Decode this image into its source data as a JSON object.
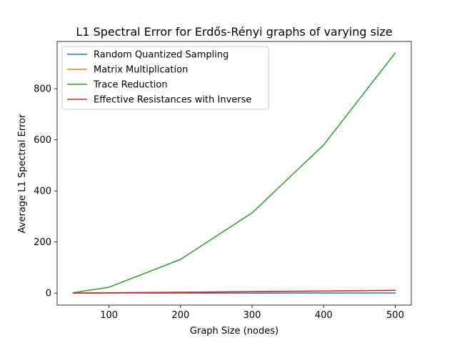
{
  "chart_data": {
    "type": "line",
    "title": "L1 Spectral Error for Erdős-Rényi graphs of varying size",
    "xlabel": "Graph Size (nodes)",
    "ylabel": "Average L1 Spectral Error",
    "x": [
      50,
      100,
      200,
      300,
      400,
      500
    ],
    "xlim": [
      27.5,
      522.5
    ],
    "ylim": [
      -47,
      985
    ],
    "xticks": [
      100,
      200,
      300,
      400,
      500
    ],
    "yticks": [
      0,
      200,
      400,
      600,
      800
    ],
    "grid": false,
    "legend_position": "top-left",
    "series": [
      {
        "name": "Random Quantized Sampling",
        "color": "#1f77b4",
        "values": [
          0.1,
          0.2,
          0.3,
          0.3,
          0.4,
          0.4
        ]
      },
      {
        "name": "Matrix Multiplication",
        "color": "#ff7f0e",
        "values": [
          0.2,
          1.0,
          3.0,
          5.5,
          8.0,
          10.5
        ]
      },
      {
        "name": "Trace Reduction",
        "color": "#2ca02c",
        "values": [
          1.5,
          23,
          132,
          314,
          580,
          940
        ]
      },
      {
        "name": "Effective Resistances with Inverse",
        "color": "#d62728",
        "values": [
          0.3,
          1.2,
          3.3,
          5.8,
          8.3,
          11.0
        ]
      }
    ]
  }
}
